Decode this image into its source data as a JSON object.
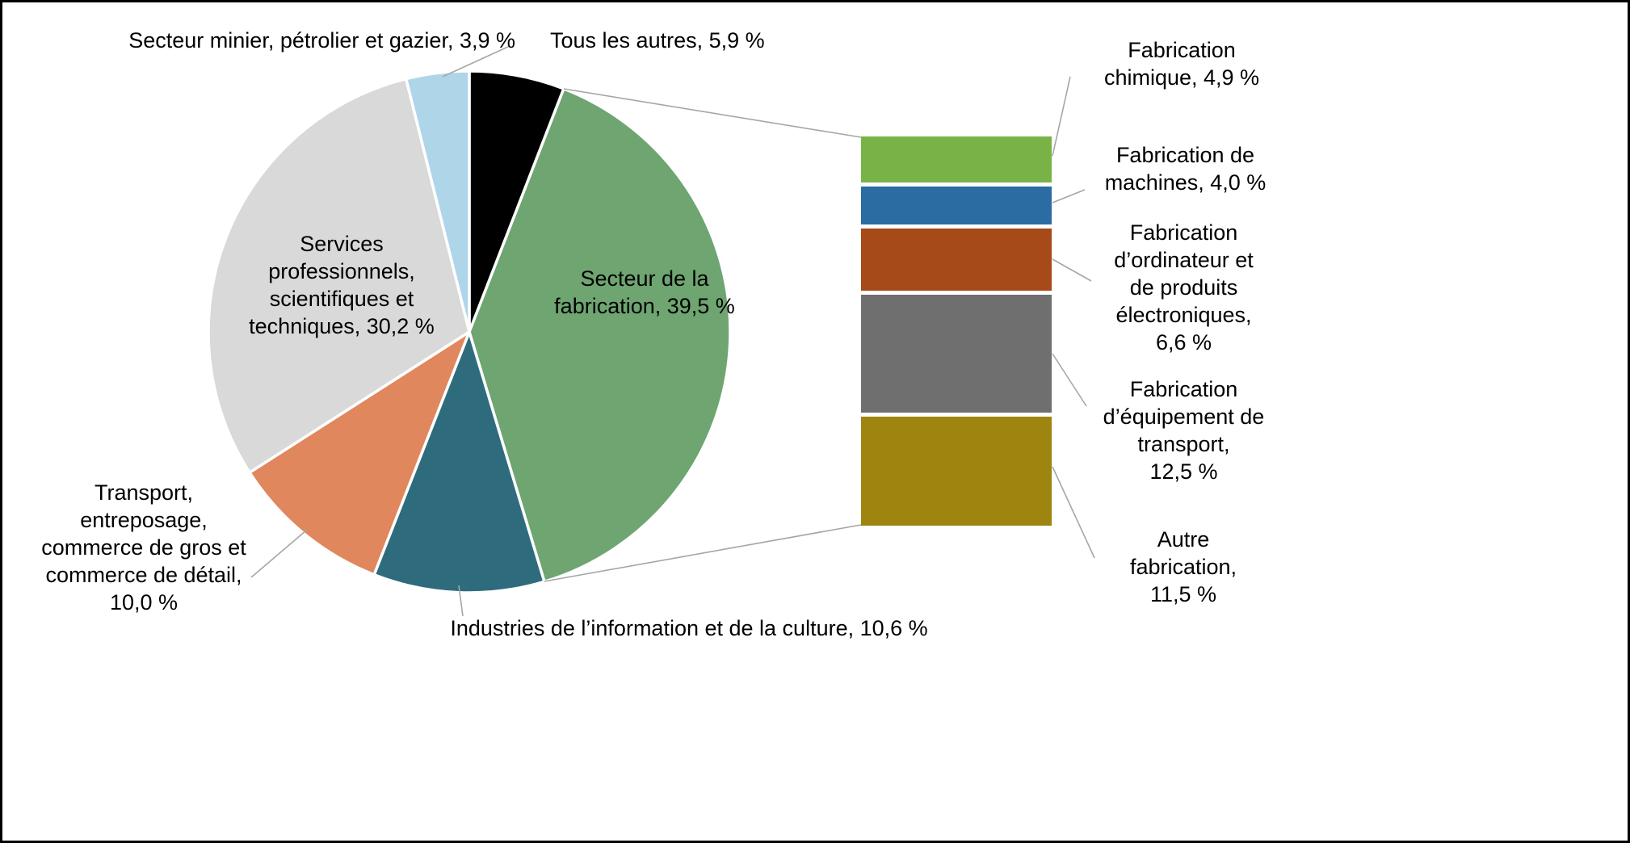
{
  "chart_data": {
    "type": "pie",
    "subtype": "pie-with-stacked-bar-breakdown",
    "title": "",
    "units": "%",
    "decimal_style": "comma",
    "pie": {
      "start_angle_deg": 0,
      "direction": "clockwise",
      "segments": [
        {
          "label": "Tous les autres",
          "value": 5.9,
          "color": "#000000"
        },
        {
          "label": "Secteur de la fabrication",
          "value": 39.5,
          "color": "#6EA571"
        },
        {
          "label": "Industries de l’information et de la culture",
          "value": 10.6,
          "color": "#2E6C7D"
        },
        {
          "label": "Transport, entreposage, commerce de gros et commerce de détail",
          "value": 10.0,
          "color": "#E0875D"
        },
        {
          "label": "Services professionnels, scientifiques et techniques",
          "value": 30.2,
          "color": "#D9D9D9"
        },
        {
          "label": "Secteur minier, pétrolier et gazier",
          "value": 3.9,
          "color": "#AFD6E8"
        }
      ]
    },
    "bar_breakdown": {
      "of": "Secteur de la fabrication",
      "segments": [
        {
          "label": "Fabrication chimique",
          "value": 4.9,
          "color": "#79B347"
        },
        {
          "label": "Fabrication de machines",
          "value": 4.0,
          "color": "#2B6CA3"
        },
        {
          "label": "Fabrication d’ordinateur et de produits électroniques",
          "value": 6.6,
          "color": "#A54A18"
        },
        {
          "label": "Fabrication d’équipement de transport",
          "value": 12.5,
          "color": "#6F6F6F"
        },
        {
          "label": "Autre fabrication",
          "value": 11.5,
          "color": "#9D8510"
        }
      ]
    }
  },
  "labels": {
    "minier": "Secteur minier, pétrolier et gazier, 3,9 %",
    "autres": "Tous les autres, 5,9 %",
    "fabrication": "Secteur de la\nfabrication, 39,5 %",
    "services": "Services\nprofessionnels,\nscientifiques et\ntechniques, 30,2 %",
    "transport": "Transport,\nentreposage,\ncommerce de gros et\ncommerce de détail,\n10,0 %",
    "information": "Industries de l’information et de la culture, 10,6 %",
    "chimique": "Fabrication\nchimique, 4,9 %",
    "machines": "Fabrication de\nmachines, 4,0 %",
    "ordinateur": "Fabrication\nd’ordinateur et\nde produits\nélectroniques,\n6,6 %",
    "equipement": "Fabrication\nd’équipement de\ntransport,\n12,5 %",
    "autre_fabrication": "Autre\nfabrication,\n11,5 %"
  },
  "style": {
    "leader_line_color": "#A6A6A6",
    "slice_gap_color": "#FFFFFF"
  }
}
